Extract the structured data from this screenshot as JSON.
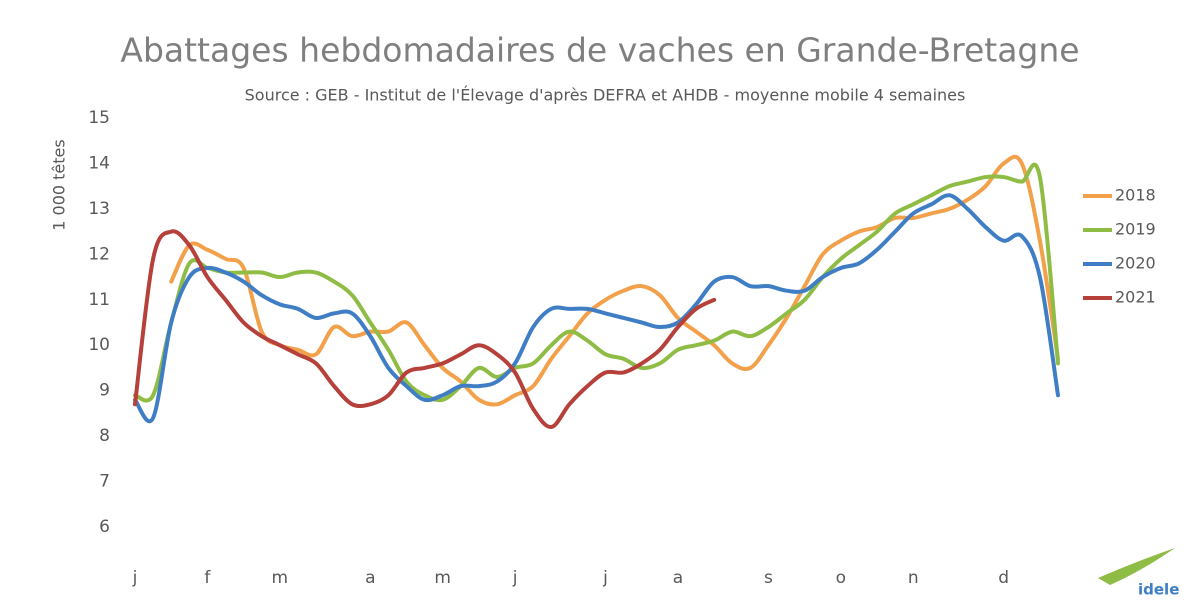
{
  "chart_data": {
    "type": "line",
    "title": "Abattages hebdomadaires de vaches en Grande-Bretagne",
    "subtitle": "Source : GEB - Institut de l'Élevage d'après DEFRA et AHDB  - moyenne mobile 4 semaines",
    "y_label": "1 000 têtes",
    "logo": "idele",
    "categories": [
      "j",
      null,
      null,
      null,
      "f",
      null,
      null,
      null,
      "m",
      null,
      null,
      null,
      null,
      "a",
      null,
      null,
      null,
      "m",
      null,
      null,
      null,
      "j",
      null,
      null,
      null,
      null,
      "j",
      null,
      null,
      null,
      "a",
      null,
      null,
      null,
      null,
      "s",
      null,
      null,
      null,
      "o",
      null,
      null,
      null,
      "n",
      null,
      null,
      null,
      null,
      "d",
      null,
      null,
      null
    ],
    "ylim": [
      6,
      15
    ],
    "yticks": [
      6,
      7,
      8,
      9,
      10,
      11,
      12,
      13,
      14,
      15
    ],
    "grid": false,
    "legend": "right",
    "series": [
      {
        "name": "2018",
        "color": "#f2a04a",
        "values": [
          null,
          null,
          11.4,
          12.2,
          12.1,
          11.9,
          11.7,
          10.3,
          10.0,
          9.9,
          9.8,
          10.4,
          10.2,
          10.3,
          10.3,
          10.5,
          10.0,
          9.5,
          9.2,
          8.8,
          8.7,
          8.9,
          9.1,
          9.7,
          10.2,
          10.7,
          11.0,
          11.2,
          11.3,
          11.1,
          10.6,
          10.3,
          10.0,
          9.6,
          9.5,
          10.0,
          10.6,
          11.3,
          12.0,
          12.3,
          12.5,
          12.6,
          12.8,
          12.8,
          12.9,
          13.0,
          13.2,
          13.5,
          14.0,
          14.0,
          12.3,
          9.7
        ]
      },
      {
        "name": "2019",
        "color": "#8fbc44",
        "values": [
          8.9,
          8.9,
          10.5,
          11.8,
          11.7,
          11.6,
          11.6,
          11.6,
          11.5,
          11.6,
          11.6,
          11.4,
          11.1,
          10.5,
          9.9,
          9.2,
          8.9,
          8.8,
          9.1,
          9.5,
          9.3,
          9.5,
          9.6,
          10.0,
          10.3,
          10.1,
          9.8,
          9.7,
          9.5,
          9.6,
          9.9,
          10.0,
          10.1,
          10.3,
          10.2,
          10.4,
          10.7,
          11.0,
          11.5,
          11.9,
          12.2,
          12.5,
          12.9,
          13.1,
          13.3,
          13.5,
          13.6,
          13.7,
          13.7,
          13.6,
          13.7,
          9.6
        ]
      },
      {
        "name": "2020",
        "color": "#3f7ec4",
        "values": [
          8.8,
          8.4,
          10.5,
          11.5,
          11.7,
          11.6,
          11.4,
          11.1,
          10.9,
          10.8,
          10.6,
          10.7,
          10.7,
          10.2,
          9.5,
          9.1,
          8.8,
          8.9,
          9.1,
          9.1,
          9.2,
          9.6,
          10.4,
          10.8,
          10.8,
          10.8,
          10.7,
          10.6,
          10.5,
          10.4,
          10.5,
          10.9,
          11.4,
          11.5,
          11.3,
          11.3,
          11.2,
          11.2,
          11.5,
          11.7,
          11.8,
          12.1,
          12.5,
          12.9,
          13.1,
          13.3,
          13.0,
          12.6,
          12.3,
          12.4,
          11.5,
          8.9
        ]
      },
      {
        "name": "2021",
        "color": "#b6403a",
        "values": [
          8.7,
          11.9,
          12.5,
          12.2,
          11.5,
          11.0,
          10.5,
          10.2,
          10.0,
          9.8,
          9.6,
          9.1,
          8.7,
          8.7,
          8.9,
          9.4,
          9.5,
          9.6,
          9.8,
          10.0,
          9.8,
          9.4,
          8.6,
          8.2,
          8.7,
          9.1,
          9.4,
          9.4,
          9.6,
          9.9,
          10.4,
          10.8,
          11.0,
          null,
          null,
          null,
          null,
          null,
          null,
          null,
          null,
          null,
          null,
          null,
          null,
          null,
          null,
          null,
          null,
          null,
          null,
          null
        ]
      }
    ]
  }
}
